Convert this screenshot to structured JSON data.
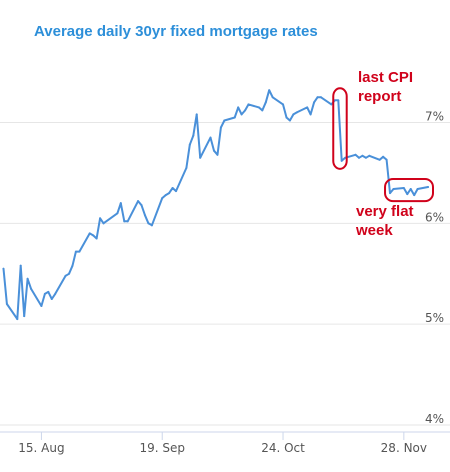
{
  "chart_data": {
    "type": "line",
    "title": "Average daily 30yr fixed mortgage rates",
    "xlabel": "",
    "ylabel": "",
    "grid": "horizontal",
    "y_ticks": [
      "4%",
      "5%",
      "6%",
      "7%"
    ],
    "y_tick_values": [
      4,
      5,
      6,
      7
    ],
    "ylim": [
      4,
      7.6
    ],
    "x_ticks": [
      "15. Aug",
      "19. Sep",
      "24. Oct",
      "28. Nov"
    ],
    "x_tick_values": [
      "2022-08-15",
      "2022-09-19",
      "2022-10-24",
      "2022-11-28"
    ],
    "xlim": [
      "2022-08-03",
      "2022-12-05"
    ],
    "series": [
      {
        "name": "",
        "color": "#4a90d9",
        "points": [
          [
            "2022-08-04",
            5.55
          ],
          [
            "2022-08-05",
            5.2
          ],
          [
            "2022-08-08",
            5.05
          ],
          [
            "2022-08-09",
            5.58
          ],
          [
            "2022-08-10",
            5.08
          ],
          [
            "2022-08-11",
            5.45
          ],
          [
            "2022-08-12",
            5.35
          ],
          [
            "2022-08-15",
            5.18
          ],
          [
            "2022-08-16",
            5.3
          ],
          [
            "2022-08-17",
            5.32
          ],
          [
            "2022-08-18",
            5.25
          ],
          [
            "2022-08-19",
            5.3
          ],
          [
            "2022-08-22",
            5.48
          ],
          [
            "2022-08-23",
            5.5
          ],
          [
            "2022-08-24",
            5.58
          ],
          [
            "2022-08-25",
            5.72
          ],
          [
            "2022-08-26",
            5.72
          ],
          [
            "2022-08-29",
            5.9
          ],
          [
            "2022-08-30",
            5.88
          ],
          [
            "2022-08-31",
            5.85
          ],
          [
            "2022-09-01",
            6.05
          ],
          [
            "2022-09-02",
            6.0
          ],
          [
            "2022-09-06",
            6.1
          ],
          [
            "2022-09-07",
            6.2
          ],
          [
            "2022-09-08",
            6.02
          ],
          [
            "2022-09-09",
            6.02
          ],
          [
            "2022-09-12",
            6.22
          ],
          [
            "2022-09-13",
            6.18
          ],
          [
            "2022-09-14",
            6.08
          ],
          [
            "2022-09-15",
            6.0
          ],
          [
            "2022-09-16",
            5.98
          ],
          [
            "2022-09-19",
            6.25
          ],
          [
            "2022-09-20",
            6.28
          ],
          [
            "2022-09-21",
            6.3
          ],
          [
            "2022-09-22",
            6.35
          ],
          [
            "2022-09-23",
            6.32
          ],
          [
            "2022-09-26",
            6.55
          ],
          [
            "2022-09-27",
            6.78
          ],
          [
            "2022-09-28",
            6.87
          ],
          [
            "2022-09-29",
            7.08
          ],
          [
            "2022-09-30",
            6.65
          ],
          [
            "2022-10-03",
            6.85
          ],
          [
            "2022-10-04",
            6.72
          ],
          [
            "2022-10-05",
            6.68
          ],
          [
            "2022-10-06",
            6.95
          ],
          [
            "2022-10-07",
            7.02
          ],
          [
            "2022-10-10",
            7.05
          ],
          [
            "2022-10-11",
            7.15
          ],
          [
            "2022-10-12",
            7.08
          ],
          [
            "2022-10-13",
            7.12
          ],
          [
            "2022-10-14",
            7.18
          ],
          [
            "2022-10-17",
            7.15
          ],
          [
            "2022-10-18",
            7.12
          ],
          [
            "2022-10-19",
            7.2
          ],
          [
            "2022-10-20",
            7.32
          ],
          [
            "2022-10-21",
            7.25
          ],
          [
            "2022-10-24",
            7.18
          ],
          [
            "2022-10-25",
            7.05
          ],
          [
            "2022-10-26",
            7.02
          ],
          [
            "2022-10-27",
            7.08
          ],
          [
            "2022-10-28",
            7.1
          ],
          [
            "2022-10-31",
            7.15
          ],
          [
            "2022-11-01",
            7.08
          ],
          [
            "2022-11-02",
            7.2
          ],
          [
            "2022-11-03",
            7.25
          ],
          [
            "2022-11-04",
            7.25
          ],
          [
            "2022-11-07",
            7.18
          ],
          [
            "2022-11-08",
            7.22
          ],
          [
            "2022-11-09",
            7.22
          ],
          [
            "2022-11-10",
            6.62
          ],
          [
            "2022-11-11",
            6.65
          ],
          [
            "2022-11-14",
            6.68
          ],
          [
            "2022-11-15",
            6.65
          ],
          [
            "2022-11-16",
            6.67
          ],
          [
            "2022-11-17",
            6.65
          ],
          [
            "2022-11-18",
            6.67
          ],
          [
            "2022-11-21",
            6.63
          ],
          [
            "2022-11-22",
            6.66
          ],
          [
            "2022-11-23",
            6.63
          ],
          [
            "2022-11-24",
            6.3
          ],
          [
            "2022-11-25",
            6.34
          ],
          [
            "2022-11-28",
            6.35
          ],
          [
            "2022-11-29",
            6.29
          ],
          [
            "2022-11-30",
            6.34
          ],
          [
            "2022-12-01",
            6.28
          ],
          [
            "2022-12-02",
            6.34
          ],
          [
            "2022-12-05",
            6.36
          ]
        ]
      }
    ],
    "annotations": [
      {
        "lines": [
          "last CPI",
          "report"
        ],
        "color": "#d0021b",
        "box_from": "2022-11-09",
        "box_to": "2022-11-10",
        "box_ylim": [
          6.58,
          7.3
        ]
      },
      {
        "lines": [
          "very flat",
          "week"
        ],
        "color": "#d0021b",
        "box_from": "2022-11-24",
        "box_to": "2022-12-05",
        "box_ylim": [
          6.26,
          6.4
        ]
      }
    ],
    "colors": {
      "title": "#2d8fd9",
      "line": "#4a90d9",
      "grid": "#e6e6e6",
      "axis": "#ccd6eb",
      "annotation": "#d0021b"
    }
  }
}
